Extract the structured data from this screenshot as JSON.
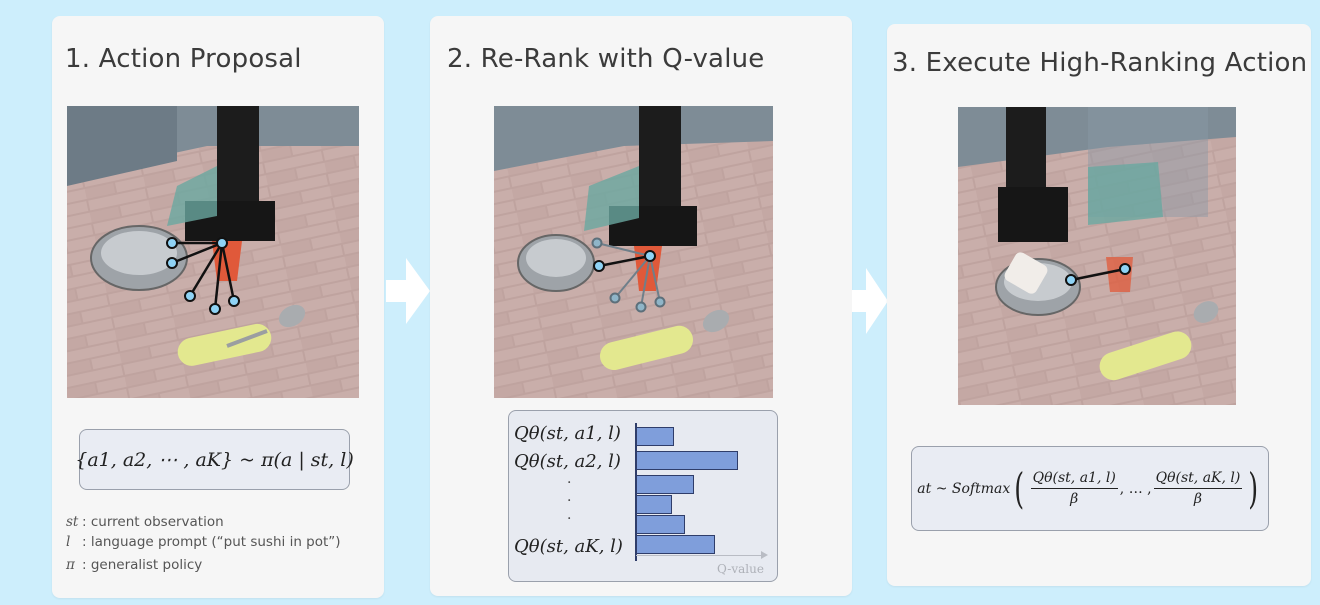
{
  "panels": [
    {
      "title": "1. Action Proposal"
    },
    {
      "title": "2. Re-Rank with Q-value"
    },
    {
      "title": "3. Execute High-Ranking Action"
    }
  ],
  "proposal": {
    "formula": "{a1, a2, ⋯ , aK} ~ π(a | st, l)",
    "legend": [
      {
        "symbol": "st",
        "text": ": current observation"
      },
      {
        "symbol": "l",
        "text": ": language prompt (“put sushi in pot”)"
      },
      {
        "symbol": "π",
        "text": ": generalist policy"
      }
    ]
  },
  "rerank": {
    "rows": [
      {
        "label": "Qθ(st, a1, l)",
        "q": 0.3
      },
      {
        "label": "Qθ(st, a2, l)",
        "q": 0.8
      },
      {
        "label": "",
        "q": 0.45
      },
      {
        "label": "",
        "q": 0.28
      },
      {
        "label": "",
        "q": 0.38
      },
      {
        "label": "Qθ(st, aK, l)",
        "q": 0.62
      }
    ],
    "axis_label": "Q-value",
    "dots": "·"
  },
  "execute": {
    "formula_lhs": "at ~ Softmax",
    "num1": "Qθ(st, a1, l)",
    "num2": "Qθ(st, aK, l)",
    "den": "β",
    "sep": ", … ,"
  },
  "colors": {
    "background": "#cdeefc",
    "bar_fill": "#7f9edb",
    "bar_stroke": "#2f3d6a",
    "waypoint": "#8fd3f5"
  }
}
